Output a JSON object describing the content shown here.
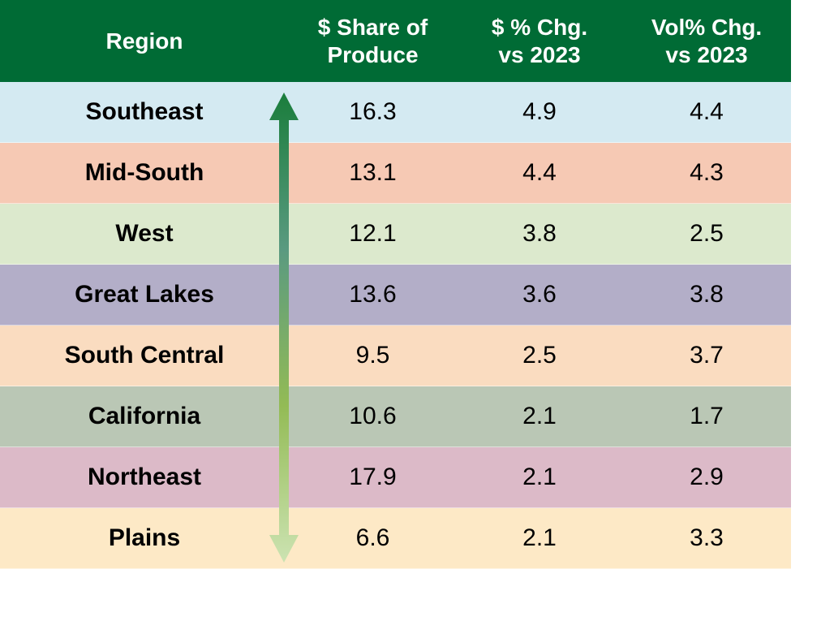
{
  "chart_data": {
    "type": "table",
    "columns": [
      "Region",
      "$ Share of Produce",
      "$ % Chg. vs 2023",
      "Vol% Chg. vs 2023"
    ],
    "header_lines": [
      [
        "Region"
      ],
      [
        "$ Share of",
        "Produce"
      ],
      [
        "$ % Chg.",
        "vs 2023"
      ],
      [
        "Vol% Chg.",
        "vs 2023"
      ]
    ],
    "rows": [
      {
        "region": "Southeast",
        "share": "16.3",
        "dollar_chg": "4.9",
        "vol_chg": "4.4",
        "color": "#d4eaf2"
      },
      {
        "region": "Mid-South",
        "share": "13.1",
        "dollar_chg": "4.4",
        "vol_chg": "4.3",
        "color": "#f6c9b4"
      },
      {
        "region": "West",
        "share": "12.1",
        "dollar_chg": "3.8",
        "vol_chg": "2.5",
        "color": "#dce9cd"
      },
      {
        "region": "Great Lakes",
        "share": "13.6",
        "dollar_chg": "3.6",
        "vol_chg": "3.8",
        "color": "#b3aec8"
      },
      {
        "region": "South Central",
        "share": "9.5",
        "dollar_chg": "2.5",
        "vol_chg": "3.7",
        "color": "#fadcc0"
      },
      {
        "region": "California",
        "share": "10.6",
        "dollar_chg": "2.1",
        "vol_chg": "1.7",
        "color": "#bac7b5"
      },
      {
        "region": "Northeast",
        "share": "17.9",
        "dollar_chg": "2.1",
        "vol_chg": "2.9",
        "color": "#dcbac8"
      },
      {
        "region": "Plains",
        "share": "6.6",
        "dollar_chg": "2.1",
        "vol_chg": "3.3",
        "color": "#fde9c6"
      }
    ],
    "header_color": "#006b35",
    "arrow": {
      "direction": "double-vertical",
      "gradient": [
        "#1a7d3c",
        "#5a9a80",
        "#93bb55",
        "#cce3b2"
      ]
    }
  }
}
